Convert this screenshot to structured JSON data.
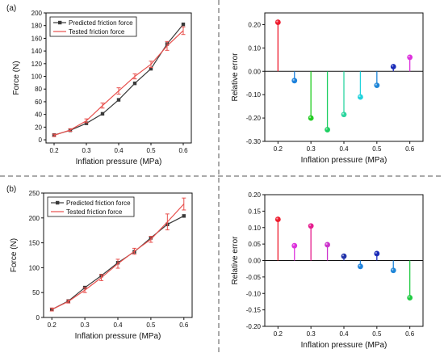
{
  "chart_data": [
    {
      "panel_label": "(a)",
      "type": "line",
      "xlabel": "Inflation pressure (MPa)",
      "ylabel": "Force (N)",
      "xlim": [
        0.175,
        0.625
      ],
      "ylim": [
        -5,
        200
      ],
      "xticks": [
        0.2,
        0.3,
        0.4,
        0.5,
        0.6
      ],
      "yticks": [
        0,
        20,
        40,
        60,
        80,
        100,
        120,
        140,
        160,
        180,
        200
      ],
      "x": [
        0.2,
        0.25,
        0.3,
        0.35,
        0.4,
        0.45,
        0.5,
        0.55,
        0.6
      ],
      "legend_position": "top-left",
      "series": [
        {
          "name": "Predicted friction force",
          "color": "#3a3a3a",
          "marker": "square",
          "values": [
            7.5,
            15,
            26,
            41,
            63,
            89,
            112,
            151,
            182
          ]
        },
        {
          "name": "Tested friction force",
          "color": "#e8504d",
          "marker": "none",
          "values": [
            7,
            15.5,
            30,
            54,
            77,
            100,
            119,
            148,
            172
          ],
          "errors": [
            2,
            2,
            3,
            4,
            5,
            4,
            5,
            7,
            6
          ]
        }
      ]
    },
    {
      "panel_label": "",
      "type": "stem",
      "xlabel": "Inflation pressure (MPa)",
      "ylabel": "Relative error",
      "xlim": [
        0.16,
        0.64
      ],
      "ylim": [
        -0.3,
        0.25
      ],
      "xticks": [
        0.2,
        0.3,
        0.4,
        0.5,
        0.6
      ],
      "yticks": [
        -0.3,
        -0.2,
        -0.1,
        0.0,
        0.1,
        0.2
      ],
      "x": [
        0.2,
        0.25,
        0.3,
        0.35,
        0.4,
        0.45,
        0.5,
        0.55,
        0.6
      ],
      "values": [
        0.21,
        -0.04,
        -0.2,
        -0.25,
        -0.185,
        -0.11,
        -0.06,
        0.02,
        0.06
      ],
      "colors": [
        "#ee1c2e",
        "#1e82dc",
        "#22cc22",
        "#1ecf62",
        "#2dd6a0",
        "#22d3dd",
        "#1f86d8",
        "#1a2bb8",
        "#dd33dd"
      ]
    },
    {
      "panel_label": "(b)",
      "type": "line",
      "xlabel": "Inflation pressure (MPa)",
      "ylabel": "Force (N)",
      "xlim": [
        0.175,
        0.625
      ],
      "ylim": [
        0,
        250
      ],
      "xticks": [
        0.2,
        0.3,
        0.4,
        0.5,
        0.6
      ],
      "yticks": [
        0,
        50,
        100,
        150,
        200,
        250
      ],
      "x": [
        0.2,
        0.25,
        0.3,
        0.35,
        0.4,
        0.45,
        0.5,
        0.55,
        0.6
      ],
      "legend_position": "top-left",
      "series": [
        {
          "name": "Predicted friction force",
          "color": "#3a3a3a",
          "marker": "square",
          "values": [
            16,
            33,
            60,
            84,
            110,
            132,
            160,
            187,
            204
          ]
        },
        {
          "name": "Tested friction force",
          "color": "#e8504d",
          "marker": "none",
          "values": [
            16,
            32,
            55,
            80,
            108,
            133,
            157,
            192,
            228
          ],
          "errors": [
            3,
            3,
            5,
            6,
            9,
            6,
            6,
            16,
            12
          ]
        }
      ]
    },
    {
      "panel_label": "",
      "type": "stem",
      "xlabel": "Inflation pressure (MPa)",
      "ylabel": "Relative error",
      "xlim": [
        0.16,
        0.64
      ],
      "ylim": [
        -0.2,
        0.2
      ],
      "xticks": [
        0.2,
        0.3,
        0.4,
        0.5,
        0.6
      ],
      "yticks": [
        -0.2,
        -0.15,
        -0.1,
        -0.05,
        0.0,
        0.05,
        0.1,
        0.15,
        0.2
      ],
      "x": [
        0.2,
        0.25,
        0.3,
        0.35,
        0.4,
        0.45,
        0.5,
        0.55,
        0.6
      ],
      "values": [
        0.125,
        0.045,
        0.105,
        0.048,
        0.013,
        -0.018,
        0.021,
        -0.03,
        -0.113
      ],
      "colors": [
        "#ee1c2e",
        "#dd33dd",
        "#e61c8e",
        "#cc33cc",
        "#2233aa",
        "#1e82dc",
        "#1a2bb8",
        "#1f86d8",
        "#22cc44"
      ]
    }
  ]
}
